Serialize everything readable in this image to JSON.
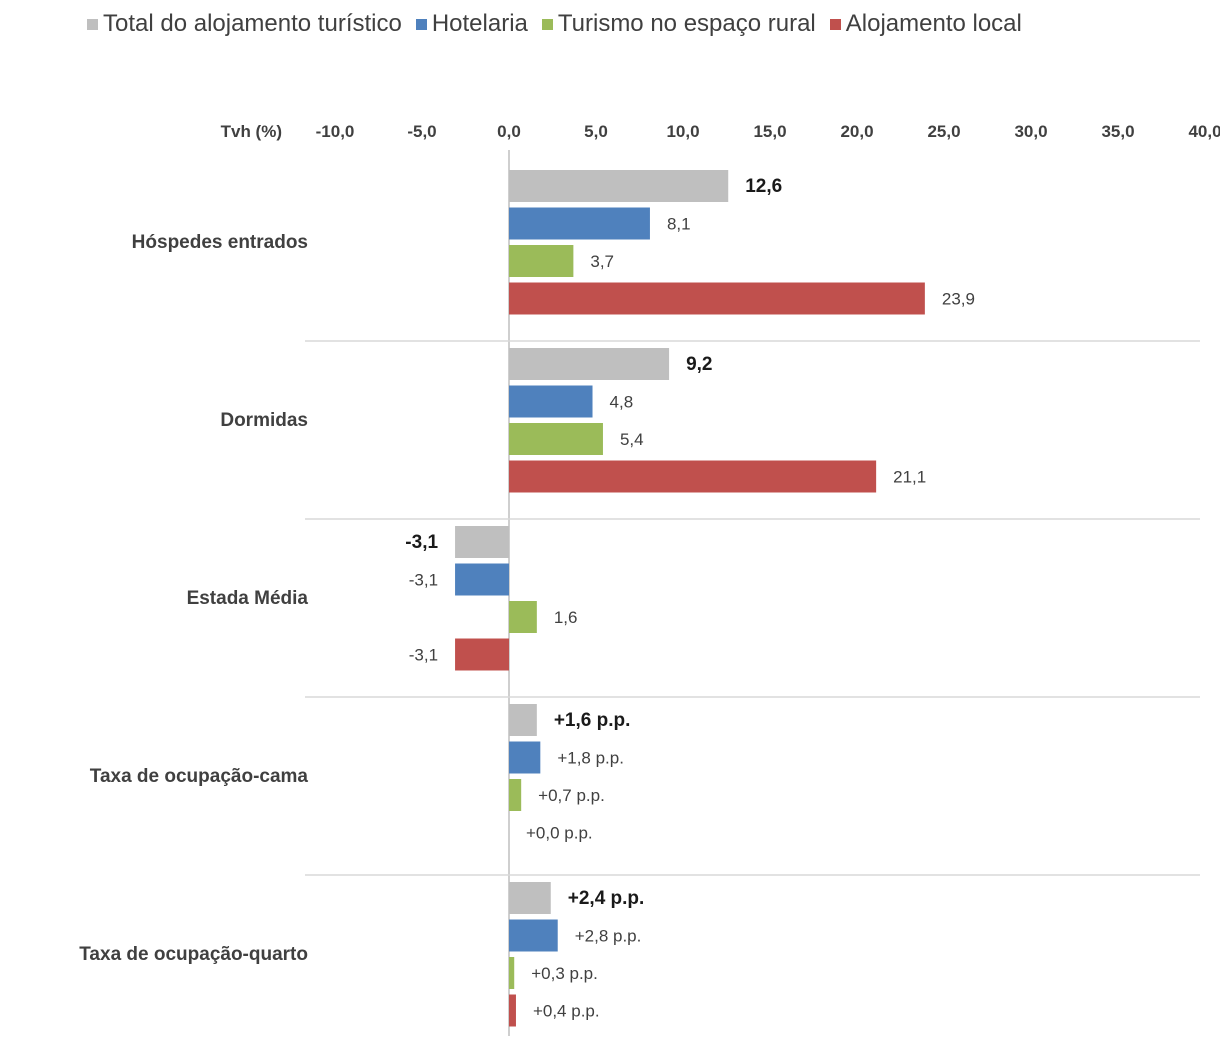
{
  "chart_data": {
    "type": "bar",
    "orientation": "horizontal",
    "axis_label": "Tvh (%)",
    "xlim": [
      -10,
      40
    ],
    "x_ticks": [
      "-10,0",
      "-5,0",
      "0,0",
      "5,0",
      "10,0",
      "15,0",
      "20,0",
      "25,0",
      "30,0",
      "35,0",
      "40,0"
    ],
    "x_tick_values": [
      -10,
      -5,
      0,
      5,
      10,
      15,
      20,
      25,
      30,
      35,
      40
    ],
    "legend_position": "top",
    "categories": [
      "Hóspedes entrados",
      "Dormidas",
      "Estada Média",
      "Taxa de ocupação-cama",
      "Taxa de ocupação-quarto"
    ],
    "series": [
      {
        "name": "Total do alojamento turístico",
        "color": "#bfbfbf",
        "values": [
          12.6,
          9.2,
          -3.1,
          1.6,
          2.4
        ],
        "labels": [
          "12,6",
          "9,2",
          "-3,1",
          "+1,6 p.p.",
          "+2,4 p.p."
        ],
        "bold": true
      },
      {
        "name": "Hotelaria",
        "color": "#4f81bd",
        "values": [
          8.1,
          4.8,
          -3.1,
          1.8,
          2.8
        ],
        "labels": [
          "8,1",
          "4,8",
          "-3,1",
          "+1,8 p.p.",
          "+2,8 p.p."
        ],
        "bold": false
      },
      {
        "name": "Turismo no espaço rural",
        "color": "#9bbb59",
        "values": [
          3.7,
          5.4,
          1.6,
          0.7,
          0.3
        ],
        "labels": [
          "3,7",
          "5,4",
          "1,6",
          "+0,7 p.p.",
          "+0,3 p.p."
        ],
        "bold": false
      },
      {
        "name": "Alojamento local",
        "color": "#c0504d",
        "values": [
          23.9,
          21.1,
          -3.1,
          0.0,
          0.4
        ],
        "labels": [
          "23,9",
          "21,1",
          "-3,1",
          "+0,0 p.p.",
          "+0,4 p.p."
        ],
        "bold": false
      }
    ]
  }
}
